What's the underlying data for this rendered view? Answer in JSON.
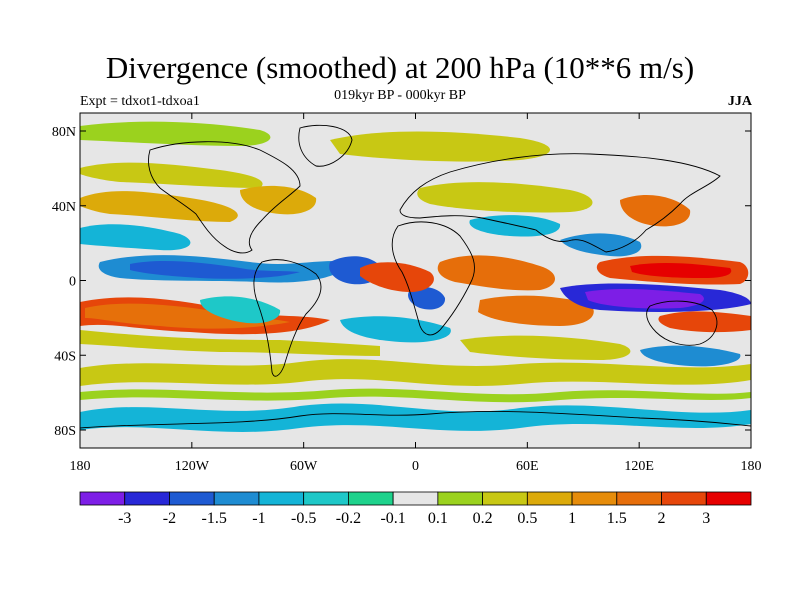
{
  "header": {
    "title": "Divergence (smoothed) at 200 hPa (10**6 m/s)",
    "subtitle": "019kyr BP - 000kyr BP",
    "experiment": "Expt = tdxot1-tdxoa1",
    "season": "JJA"
  },
  "axes": {
    "y_ticks": [
      "80N",
      "40N",
      "0",
      "40S",
      "80S"
    ],
    "x_ticks": [
      "180",
      "120W",
      "60W",
      "0",
      "60E",
      "120E",
      "180"
    ]
  },
  "colorbar": {
    "colors": [
      "#7d1ee6",
      "#2828d7",
      "#1e5ad2",
      "#1e8cd2",
      "#14b4d7",
      "#1ec8c8",
      "#1ed28c",
      "#e6e6e6",
      "#9bd21e",
      "#c8c814",
      "#dcaa0a",
      "#e68c0a",
      "#e66e0a",
      "#e6460a",
      "#e60000"
    ],
    "labels": [
      "-3",
      "-2",
      "-1.5",
      "-1",
      "-0.5",
      "-0.2",
      "-0.1",
      "0.1",
      "0.2",
      "0.5",
      "1",
      "1.5",
      "2",
      "3"
    ]
  }
}
